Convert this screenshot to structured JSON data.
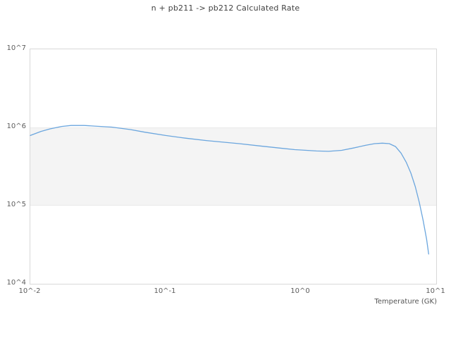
{
  "chart_data": {
    "type": "line",
    "title": "n + pb211 -> pb212 Calculated Rate",
    "xlabel": "Temperature (GK)",
    "ylabel": "",
    "x_scale": "log",
    "y_scale": "log",
    "xlim": [
      0.01,
      10
    ],
    "ylim": [
      10000,
      10000000
    ],
    "grid": "horizontal-decade-bands",
    "legend_position": "none",
    "x_ticks": [
      {
        "value": 0.01,
        "label": "10^-2"
      },
      {
        "value": 0.1,
        "label": "10^-1"
      },
      {
        "value": 1,
        "label": "10^0"
      },
      {
        "value": 10,
        "label": "10^1"
      }
    ],
    "y_ticks": [
      {
        "value": 10000000,
        "label": "10^7"
      },
      {
        "value": 1000000,
        "label": "10^6"
      },
      {
        "value": 100000,
        "label": "10^5"
      },
      {
        "value": 10000,
        "label": "10^4"
      }
    ],
    "grid_band": {
      "y_from": 100000,
      "y_to": 1000000,
      "color": "#f4f4f4"
    },
    "series": [
      {
        "name": "calculated-rate",
        "color": "#6ba6de",
        "line_width": 1.3,
        "x": [
          0.01,
          0.012,
          0.014,
          0.017,
          0.02,
          0.025,
          0.03,
          0.04,
          0.055,
          0.07,
          0.1,
          0.14,
          0.2,
          0.25,
          0.35,
          0.5,
          0.7,
          0.9,
          1.0,
          1.3,
          1.6,
          2.0,
          2.5,
          3.0,
          3.5,
          4.0,
          4.5,
          5.0,
          5.5,
          6.0,
          6.5,
          7.0,
          7.5,
          8.0,
          8.5,
          8.8
        ],
        "y": [
          790000,
          890000,
          960000,
          1030000,
          1060000,
          1060000,
          1040000,
          1010000,
          940000,
          870000,
          790000,
          730000,
          680000,
          655000,
          620000,
          580000,
          545000,
          520000,
          515000,
          500000,
          495000,
          510000,
          550000,
          590000,
          620000,
          630000,
          620000,
          570000,
          470000,
          360000,
          260000,
          175000,
          110000,
          65000,
          37000,
          24000
        ]
      }
    ]
  }
}
